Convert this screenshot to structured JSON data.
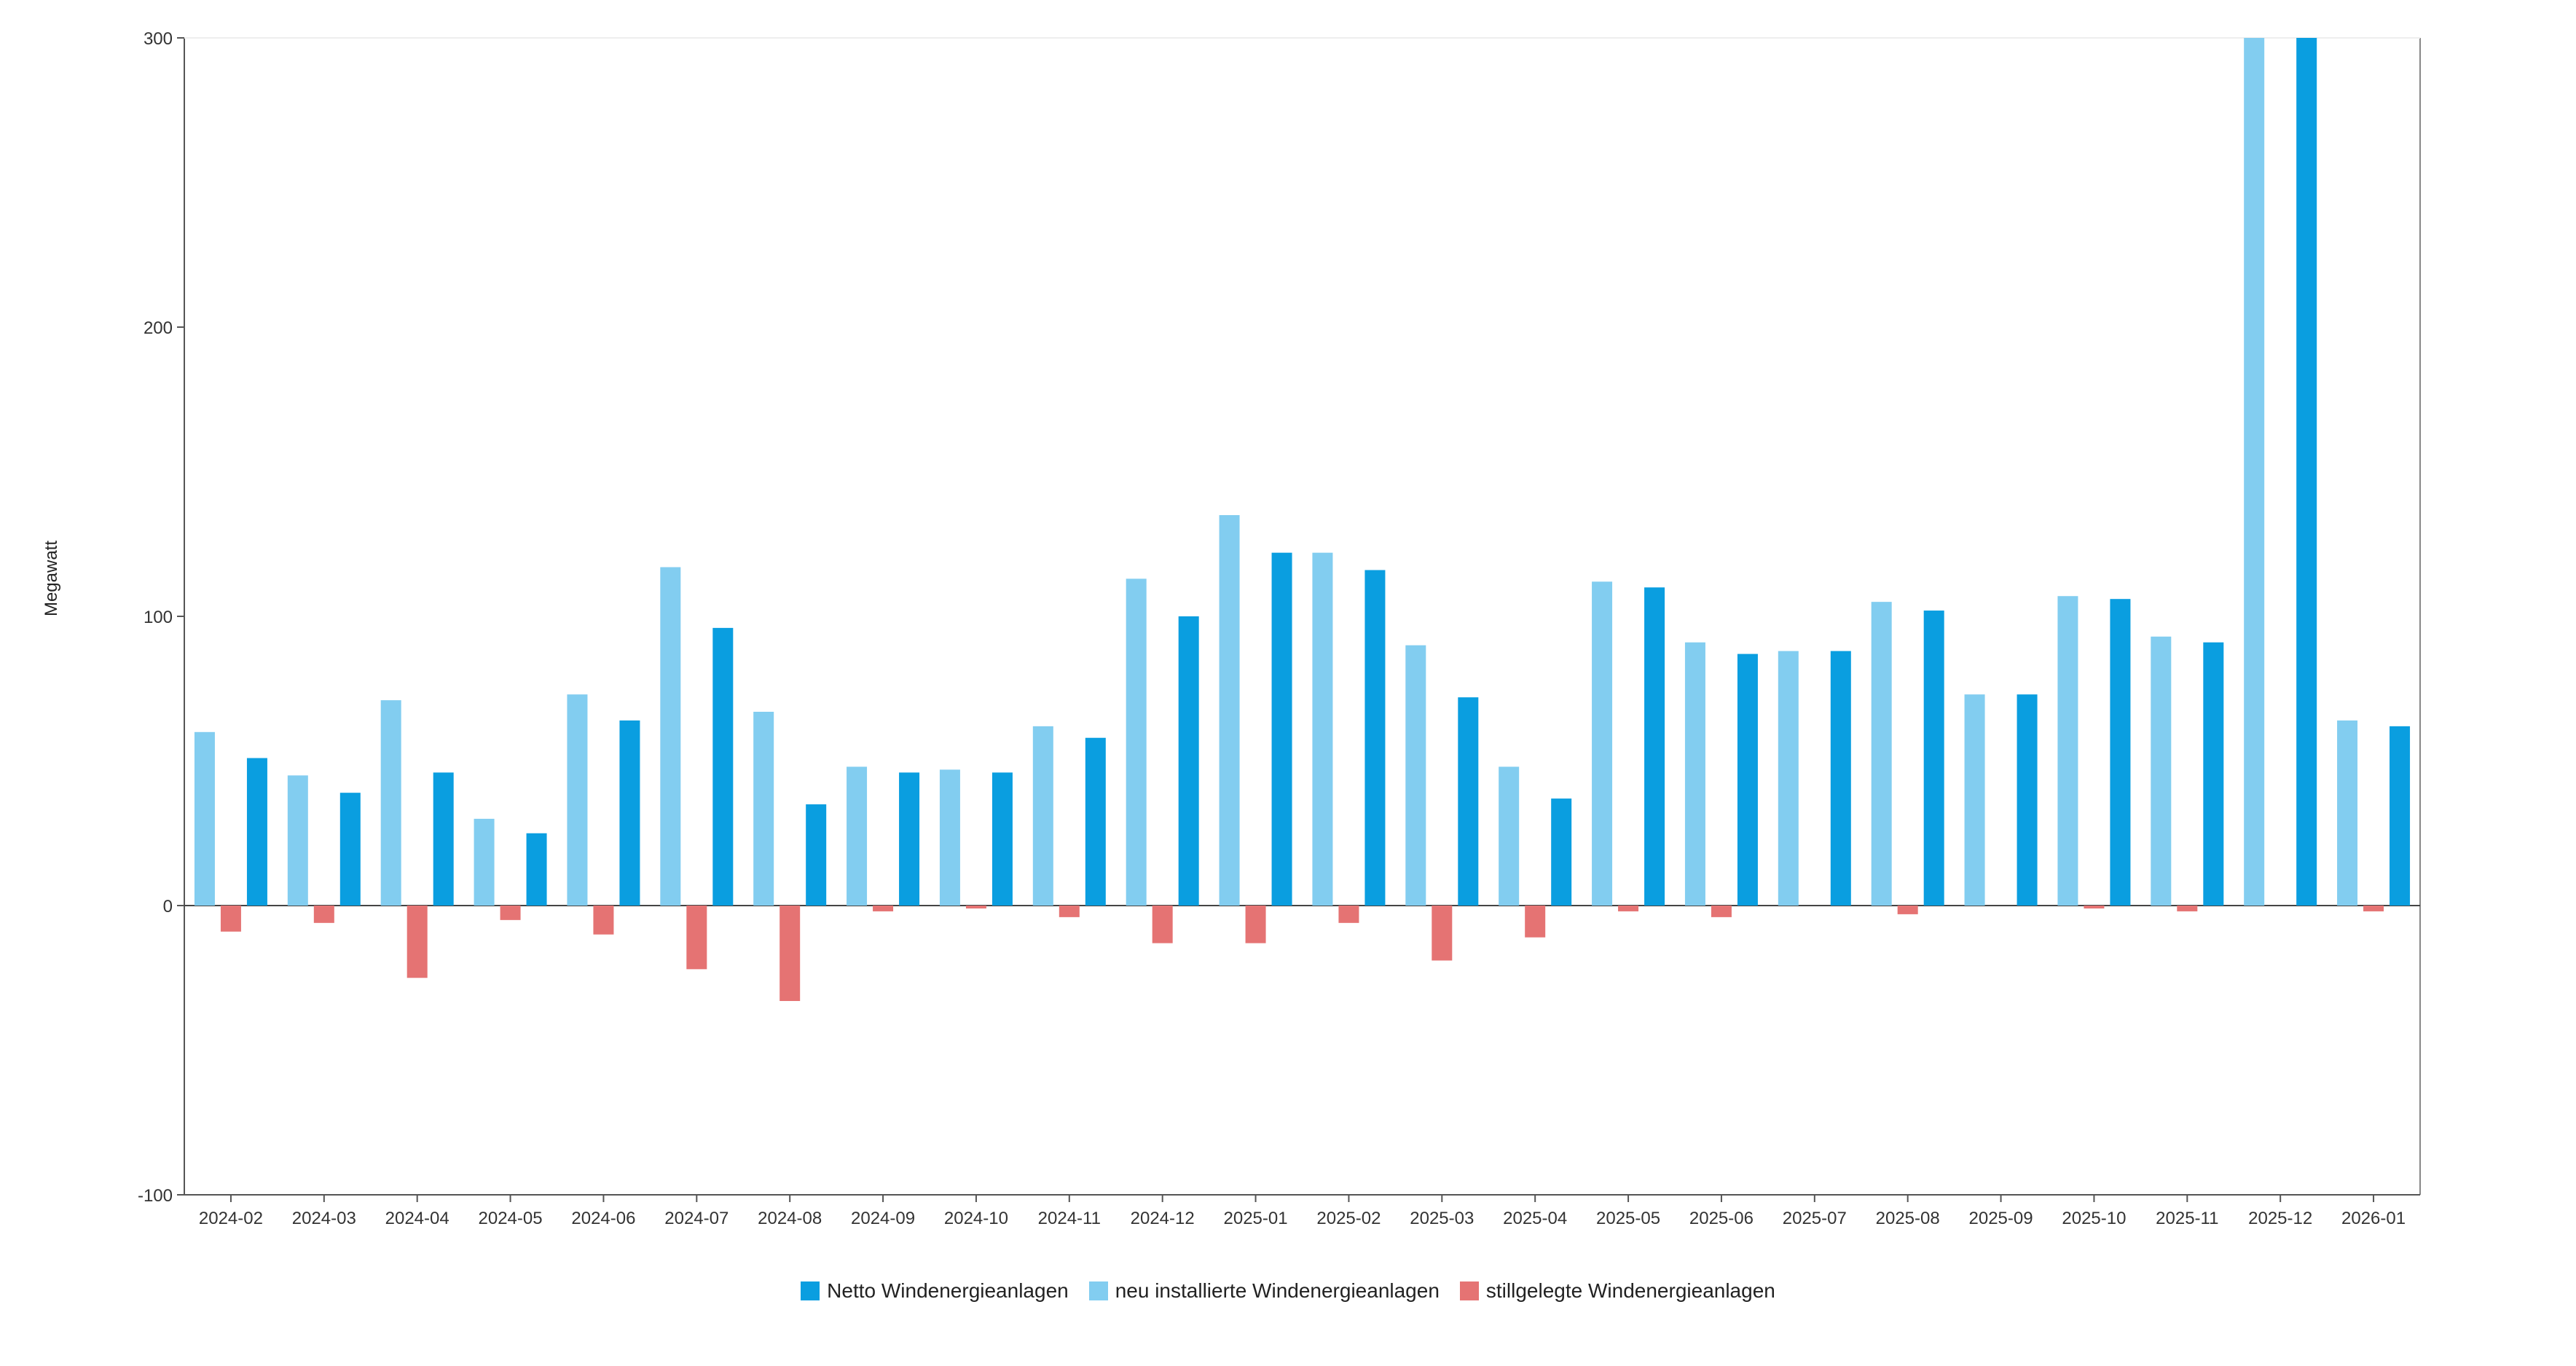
{
  "chart_data": {
    "type": "bar",
    "ylabel": "Megawatt",
    "xlabel": "",
    "ylim": [
      -100,
      300
    ],
    "yticks": [
      -100,
      0,
      100,
      200,
      300
    ],
    "categories": [
      "2024-02",
      "2024-03",
      "2024-04",
      "2024-05",
      "2024-06",
      "2024-07",
      "2024-08",
      "2024-09",
      "2024-10",
      "2024-11",
      "2024-12",
      "2025-01",
      "2025-02",
      "2025-03",
      "2025-04",
      "2025-05",
      "2025-06",
      "2025-07",
      "2025-08",
      "2025-09",
      "2025-10",
      "2025-11",
      "2025-12",
      "2026-01"
    ],
    "series": [
      {
        "name": "Netto Windenergieanlagen",
        "color": "#0a9ee0",
        "values": [
          51,
          39,
          46,
          25,
          64,
          96,
          35,
          46,
          46,
          58,
          100,
          122,
          116,
          72,
          37,
          110,
          87,
          88,
          102,
          73,
          106,
          91,
          300,
          62
        ]
      },
      {
        "name": "neu installierte Windenergieanlagen",
        "color": "#82cdf0",
        "values": [
          60,
          45,
          71,
          30,
          73,
          117,
          67,
          48,
          47,
          62,
          113,
          135,
          122,
          90,
          48,
          112,
          91,
          88,
          105,
          73,
          107,
          93,
          300,
          64
        ]
      },
      {
        "name": "stillgelegte Windenergieanlagen",
        "color": "#e57373",
        "values": [
          -9,
          -6,
          -25,
          -5,
          -10,
          -22,
          -33,
          -2,
          -1,
          -4,
          -13,
          -13,
          -6,
          -19,
          -11,
          -2,
          -4,
          0,
          -3,
          0,
          -1,
          -2,
          0,
          -2
        ]
      }
    ],
    "legend_position": "bottom-center",
    "grid": false
  }
}
